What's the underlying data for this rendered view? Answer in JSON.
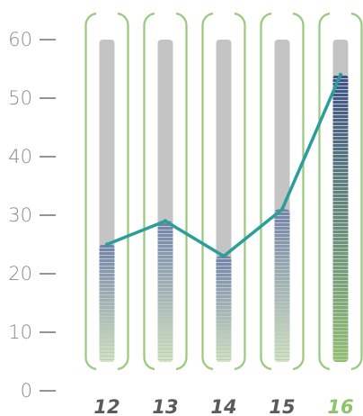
{
  "chart_data": {
    "type": "bar",
    "categories": [
      "12",
      "13",
      "14",
      "15",
      "16"
    ],
    "highlight_category": "16",
    "values": [
      25,
      29,
      23,
      31,
      54
    ],
    "max_value": 60,
    "ylim": [
      0,
      60
    ],
    "yticks": [
      0,
      10,
      20,
      30,
      40,
      50,
      60
    ],
    "ytick_labels": [
      "0",
      "10",
      "20",
      "30",
      "40",
      "50",
      "60"
    ],
    "title": "",
    "xlabel": "",
    "ylabel": "",
    "grid": false,
    "line_overlay": true,
    "colors": {
      "track": "#c4c4c4",
      "frame": "#98c97c",
      "line": "#2b9e99",
      "fill_bottom": "#cfe6bd",
      "fill_top": "#6f82ad",
      "highlight_fill_top": "#39538c",
      "highlight_fill_bottom": "#8cc46a",
      "tick_text": "#8a8a8a",
      "category_text": "#5a5a5a",
      "highlight_text": "#8cc46a"
    }
  }
}
